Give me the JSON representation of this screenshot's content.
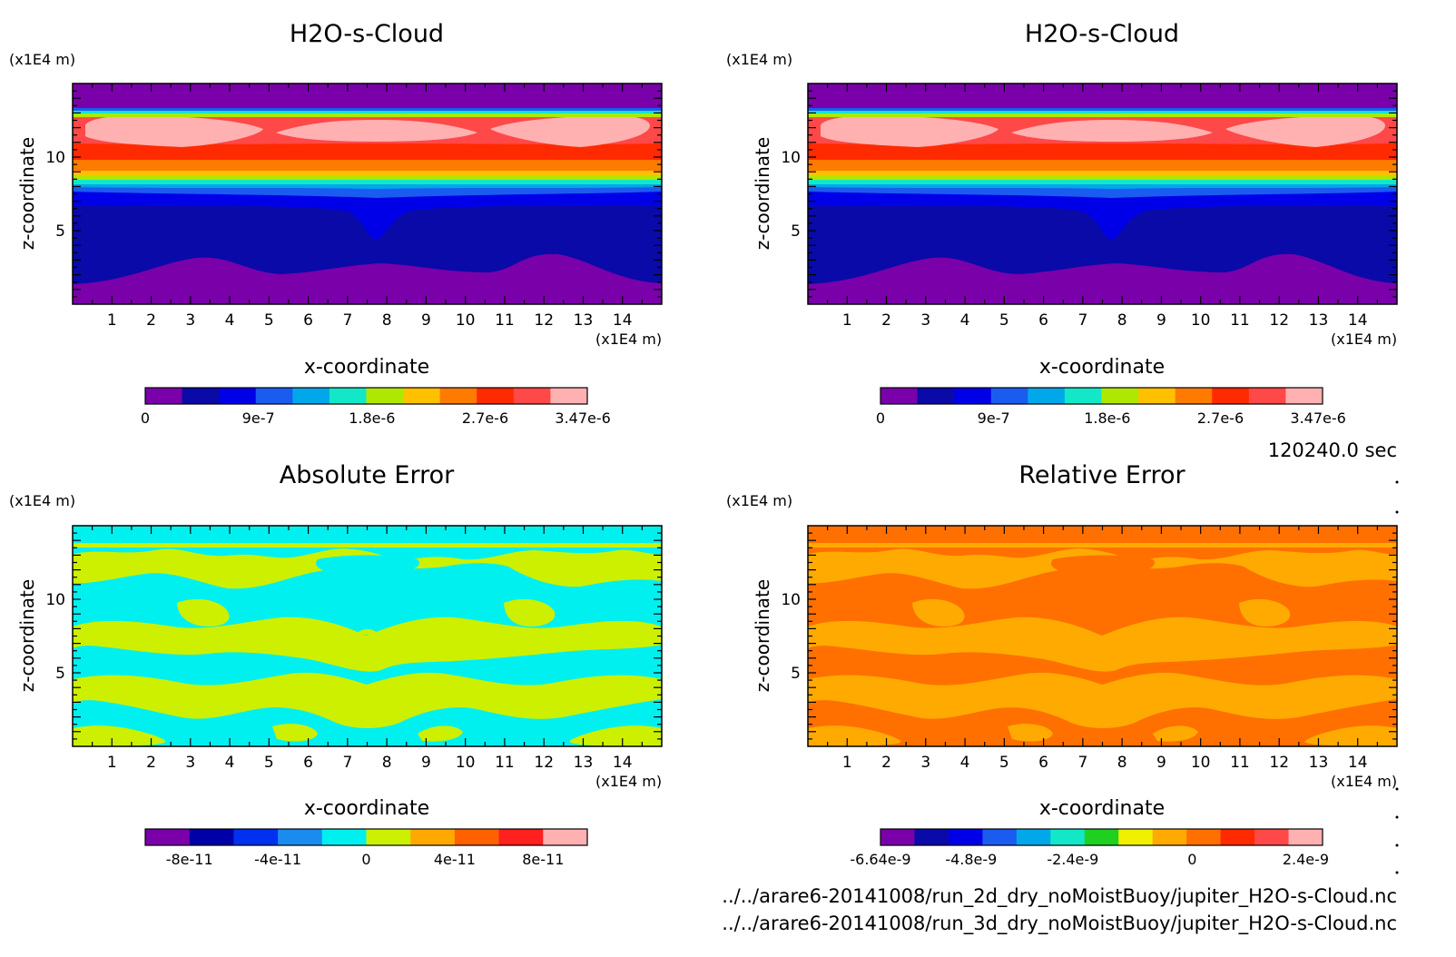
{
  "chart_data": [
    {
      "type": "heatmap",
      "title": "H2O-s-Cloud",
      "xlabel": "x-coordinate",
      "ylabel": "z-coordinate",
      "x_unit": "(x1E4 m)",
      "y_unit": "(x1E4 m)",
      "xlim": [
        0,
        15
      ],
      "ylim": [
        0,
        15
      ],
      "x_ticks": [
        "1",
        "2",
        "3",
        "4",
        "5",
        "6",
        "7",
        "8",
        "9",
        "10",
        "11",
        "12",
        "13",
        "14"
      ],
      "y_ticks": [
        "5",
        "10"
      ],
      "colorbar_labels": [
        "0",
        "9e-7",
        "1.8e-6",
        "2.7e-6",
        "3.47e-6"
      ],
      "colorbar_colors": [
        "#7a00aa",
        "#0a0aa8",
        "#0000e8",
        "#1a5cf0",
        "#00a8ea",
        "#12e8c8",
        "#aee800",
        "#ffc000",
        "#ff7a00",
        "#ff2a00",
        "#ff4848",
        "#ffb0b0"
      ]
    },
    {
      "type": "heatmap",
      "title": "H2O-s-Cloud",
      "xlabel": "x-coordinate",
      "ylabel": "z-coordinate",
      "x_unit": "(x1E4 m)",
      "y_unit": "(x1E4 m)",
      "xlim": [
        0,
        15
      ],
      "ylim": [
        0,
        15
      ],
      "x_ticks": [
        "1",
        "2",
        "3",
        "4",
        "5",
        "6",
        "7",
        "8",
        "9",
        "10",
        "11",
        "12",
        "13",
        "14"
      ],
      "y_ticks": [
        "5",
        "10"
      ],
      "colorbar_labels": [
        "0",
        "9e-7",
        "1.8e-6",
        "2.7e-6",
        "3.47e-6"
      ],
      "colorbar_colors": [
        "#7a00aa",
        "#0a0aa8",
        "#0000e8",
        "#1a5cf0",
        "#00a8ea",
        "#12e8c8",
        "#aee800",
        "#ffc000",
        "#ff7a00",
        "#ff2a00",
        "#ff4848",
        "#ffb0b0"
      ]
    },
    {
      "type": "heatmap",
      "title": "Absolute Error",
      "xlabel": "x-coordinate",
      "ylabel": "z-coordinate",
      "x_unit": "(x1E4 m)",
      "y_unit": "(x1E4 m)",
      "xlim": [
        0,
        15
      ],
      "ylim": [
        0,
        15
      ],
      "x_ticks": [
        "1",
        "2",
        "3",
        "4",
        "5",
        "6",
        "7",
        "8",
        "9",
        "10",
        "11",
        "12",
        "13",
        "14"
      ],
      "y_ticks": [
        "5",
        "10"
      ],
      "colorbar_labels": [
        "-8e-11",
        "-4e-11",
        "0",
        "4e-11",
        "8e-11"
      ],
      "colorbar_colors": [
        "#7a00aa",
        "#0000a8",
        "#0030f0",
        "#1a8cf0",
        "#00f0f0",
        "#ccf000",
        "#ffa800",
        "#ff6000",
        "#ff2020",
        "#ffb0b0"
      ]
    },
    {
      "type": "heatmap",
      "title": "Relative Error",
      "xlabel": "x-coordinate",
      "ylabel": "z-coordinate",
      "x_unit": "(x1E4 m)",
      "y_unit": "(x1E4 m)",
      "xlim": [
        0,
        15
      ],
      "ylim": [
        0,
        15
      ],
      "x_ticks": [
        "1",
        "2",
        "3",
        "4",
        "5",
        "6",
        "7",
        "8",
        "9",
        "10",
        "11",
        "12",
        "13",
        "14"
      ],
      "y_ticks": [
        "5",
        "10"
      ],
      "colorbar_labels": [
        "-6.64e-9",
        "-4.8e-9",
        "-2.4e-9",
        "0",
        "2.4e-9"
      ],
      "colorbar_colors": [
        "#7a00aa",
        "#0a0aa8",
        "#0000e8",
        "#1a5cf0",
        "#00a8ea",
        "#12e8c8",
        "#20d020",
        "#f0f000",
        "#ffaa00",
        "#ff7000",
        "#ff2a00",
        "#ff4848",
        "#ffb0b0"
      ]
    }
  ],
  "time_label": "120240.0 sec",
  "footer": {
    "line1": "../../arare6-20141008/run_2d_dry_noMoistBuoy/jupiter_H2O-s-Cloud.nc",
    "line2": "../../arare6-20141008/run_3d_dry_noMoistBuoy/jupiter_H2O-s-Cloud.nc"
  }
}
